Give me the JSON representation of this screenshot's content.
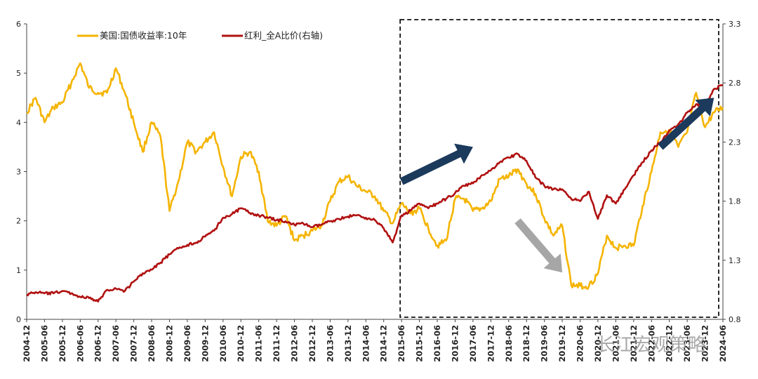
{
  "chart_data": {
    "type": "line",
    "left_axis": {
      "ylim": [
        0,
        6
      ],
      "ticks": [
        "0",
        "1",
        "2",
        "3",
        "4",
        "5",
        "6"
      ]
    },
    "right_axis": {
      "ylim": [
        0.8,
        3.3
      ],
      "ticks": [
        "0.8",
        "1.3",
        "1.8",
        "2.3",
        "2.8",
        "3.3"
      ]
    },
    "x_ticks": [
      "2004-12",
      "2005-06",
      "2005-12",
      "2006-06",
      "2006-12",
      "2007-06",
      "2007-12",
      "2008-06",
      "2008-12",
      "2009-06",
      "2009-12",
      "2010-06",
      "2010-12",
      "2011-06",
      "2011-12",
      "2012-06",
      "2012-12",
      "2013-06",
      "2013-12",
      "2014-06",
      "2014-12",
      "2015-06",
      "2015-12",
      "2016-06",
      "2016-12",
      "2017-06",
      "2017-12",
      "2018-06",
      "2018-12",
      "2019-06",
      "2019-12",
      "2020-06",
      "2020-12",
      "2021-06",
      "2021-12",
      "2022-06",
      "2022-12",
      "2023-06",
      "2023-12",
      "2024-06"
    ],
    "x_range": [
      "2004-12",
      "2024-06"
    ],
    "series": [
      {
        "name": "美国:国债收益率:10年",
        "axis": "left",
        "color": "#F5B400",
        "points": [
          [
            "2004-12",
            4.2
          ],
          [
            "2005-03",
            4.5
          ],
          [
            "2005-06",
            4.0
          ],
          [
            "2005-09",
            4.3
          ],
          [
            "2005-12",
            4.4
          ],
          [
            "2006-03",
            4.8
          ],
          [
            "2006-06",
            5.2
          ],
          [
            "2006-09",
            4.7
          ],
          [
            "2006-12",
            4.6
          ],
          [
            "2007-03",
            4.6
          ],
          [
            "2007-06",
            5.1
          ],
          [
            "2007-09",
            4.6
          ],
          [
            "2007-12",
            4.0
          ],
          [
            "2008-03",
            3.4
          ],
          [
            "2008-06",
            4.0
          ],
          [
            "2008-09",
            3.7
          ],
          [
            "2008-12",
            2.2
          ],
          [
            "2009-03",
            2.8
          ],
          [
            "2009-06",
            3.6
          ],
          [
            "2009-09",
            3.4
          ],
          [
            "2009-12",
            3.6
          ],
          [
            "2010-03",
            3.8
          ],
          [
            "2010-06",
            3.1
          ],
          [
            "2010-09",
            2.5
          ],
          [
            "2010-12",
            3.3
          ],
          [
            "2011-03",
            3.4
          ],
          [
            "2011-06",
            3.0
          ],
          [
            "2011-09",
            2.0
          ],
          [
            "2011-12",
            1.9
          ],
          [
            "2012-03",
            2.1
          ],
          [
            "2012-06",
            1.6
          ],
          [
            "2012-09",
            1.7
          ],
          [
            "2012-12",
            1.8
          ],
          [
            "2013-03",
            1.9
          ],
          [
            "2013-06",
            2.4
          ],
          [
            "2013-09",
            2.8
          ],
          [
            "2013-12",
            2.9
          ],
          [
            "2014-03",
            2.7
          ],
          [
            "2014-06",
            2.6
          ],
          [
            "2014-09",
            2.5
          ],
          [
            "2014-12",
            2.2
          ],
          [
            "2015-03",
            1.95
          ],
          [
            "2015-06",
            2.35
          ],
          [
            "2015-09",
            2.15
          ],
          [
            "2015-12",
            2.25
          ],
          [
            "2016-03",
            1.85
          ],
          [
            "2016-06",
            1.5
          ],
          [
            "2016-09",
            1.6
          ],
          [
            "2016-12",
            2.45
          ],
          [
            "2017-03",
            2.45
          ],
          [
            "2017-06",
            2.2
          ],
          [
            "2017-09",
            2.25
          ],
          [
            "2017-12",
            2.4
          ],
          [
            "2018-03",
            2.85
          ],
          [
            "2018-06",
            2.9
          ],
          [
            "2018-09",
            3.05
          ],
          [
            "2018-12",
            2.75
          ],
          [
            "2019-03",
            2.55
          ],
          [
            "2019-06",
            2.05
          ],
          [
            "2019-09",
            1.7
          ],
          [
            "2019-12",
            1.9
          ],
          [
            "2020-03",
            0.7
          ],
          [
            "2020-06",
            0.68
          ],
          [
            "2020-09",
            0.68
          ],
          [
            "2020-12",
            0.93
          ],
          [
            "2021-03",
            1.7
          ],
          [
            "2021-06",
            1.45
          ],
          [
            "2021-09",
            1.5
          ],
          [
            "2021-12",
            1.5
          ],
          [
            "2022-03",
            2.3
          ],
          [
            "2022-06",
            3.0
          ],
          [
            "2022-09",
            3.8
          ],
          [
            "2022-12",
            3.85
          ],
          [
            "2023-03",
            3.5
          ],
          [
            "2023-06",
            3.8
          ],
          [
            "2023-09",
            4.6
          ],
          [
            "2023-12",
            3.9
          ],
          [
            "2024-03",
            4.2
          ],
          [
            "2024-06",
            4.3
          ]
        ]
      },
      {
        "name": "红利_全A比价(右轴)",
        "axis": "right",
        "color": "#B01010",
        "points": [
          [
            "2004-12",
            1.01
          ],
          [
            "2005-03",
            1.03
          ],
          [
            "2005-06",
            1.02
          ],
          [
            "2005-09",
            1.02
          ],
          [
            "2005-12",
            1.04
          ],
          [
            "2006-03",
            1.02
          ],
          [
            "2006-06",
            0.99
          ],
          [
            "2006-09",
            0.98
          ],
          [
            "2006-12",
            0.95
          ],
          [
            "2007-03",
            1.05
          ],
          [
            "2007-06",
            1.06
          ],
          [
            "2007-09",
            1.04
          ],
          [
            "2007-12",
            1.12
          ],
          [
            "2008-03",
            1.19
          ],
          [
            "2008-06",
            1.22
          ],
          [
            "2008-09",
            1.28
          ],
          [
            "2008-12",
            1.35
          ],
          [
            "2009-03",
            1.4
          ],
          [
            "2009-06",
            1.43
          ],
          [
            "2009-09",
            1.45
          ],
          [
            "2009-12",
            1.5
          ],
          [
            "2010-03",
            1.55
          ],
          [
            "2010-06",
            1.66
          ],
          [
            "2010-09",
            1.69
          ],
          [
            "2010-12",
            1.74
          ],
          [
            "2011-03",
            1.7
          ],
          [
            "2011-06",
            1.68
          ],
          [
            "2011-09",
            1.66
          ],
          [
            "2011-12",
            1.64
          ],
          [
            "2012-03",
            1.63
          ],
          [
            "2012-06",
            1.6
          ],
          [
            "2012-09",
            1.61
          ],
          [
            "2012-12",
            1.58
          ],
          [
            "2013-03",
            1.6
          ],
          [
            "2013-06",
            1.63
          ],
          [
            "2013-09",
            1.65
          ],
          [
            "2013-12",
            1.67
          ],
          [
            "2014-03",
            1.68
          ],
          [
            "2014-06",
            1.66
          ],
          [
            "2014-09",
            1.64
          ],
          [
            "2014-12",
            1.57
          ],
          [
            "2015-03",
            1.45
          ],
          [
            "2015-06",
            1.68
          ],
          [
            "2015-09",
            1.72
          ],
          [
            "2015-12",
            1.78
          ],
          [
            "2016-03",
            1.74
          ],
          [
            "2016-06",
            1.78
          ],
          [
            "2016-09",
            1.82
          ],
          [
            "2016-12",
            1.87
          ],
          [
            "2017-03",
            1.93
          ],
          [
            "2017-06",
            1.95
          ],
          [
            "2017-09",
            2.02
          ],
          [
            "2017-12",
            2.06
          ],
          [
            "2018-03",
            2.13
          ],
          [
            "2018-06",
            2.17
          ],
          [
            "2018-09",
            2.2
          ],
          [
            "2018-12",
            2.14
          ],
          [
            "2019-03",
            2.0
          ],
          [
            "2019-06",
            1.93
          ],
          [
            "2019-09",
            1.9
          ],
          [
            "2019-12",
            1.9
          ],
          [
            "2020-03",
            1.82
          ],
          [
            "2020-06",
            1.8
          ],
          [
            "2020-09",
            1.88
          ],
          [
            "2020-12",
            1.65
          ],
          [
            "2021-03",
            1.85
          ],
          [
            "2021-06",
            1.78
          ],
          [
            "2021-09",
            1.9
          ],
          [
            "2021-12",
            2.02
          ],
          [
            "2022-03",
            2.13
          ],
          [
            "2022-06",
            2.23
          ],
          [
            "2022-09",
            2.3
          ],
          [
            "2022-12",
            2.4
          ],
          [
            "2023-03",
            2.45
          ],
          [
            "2023-06",
            2.55
          ],
          [
            "2023-09",
            2.62
          ],
          [
            "2023-12",
            2.6
          ],
          [
            "2024-03",
            2.75
          ],
          [
            "2024-06",
            2.78
          ]
        ]
      }
    ],
    "legend_position": "top-left",
    "grid": false,
    "highlight_box_range": [
      "2015-06",
      "2024-06"
    ],
    "arrows": [
      {
        "from": [
          "2015-06",
          2.8
        ],
        "to": [
          "2017-06",
          3.5
        ],
        "color": "#1B3A5C"
      },
      {
        "from": [
          "2022-09",
          3.5
        ],
        "to": [
          "2024-03",
          4.5
        ],
        "color": "#1B3A5C"
      },
      {
        "from": [
          "2018-09",
          2.0
        ],
        "to": [
          "2019-12",
          0.95
        ],
        "color": "#A6A6A6"
      }
    ]
  },
  "watermark": "长江宏观策略"
}
